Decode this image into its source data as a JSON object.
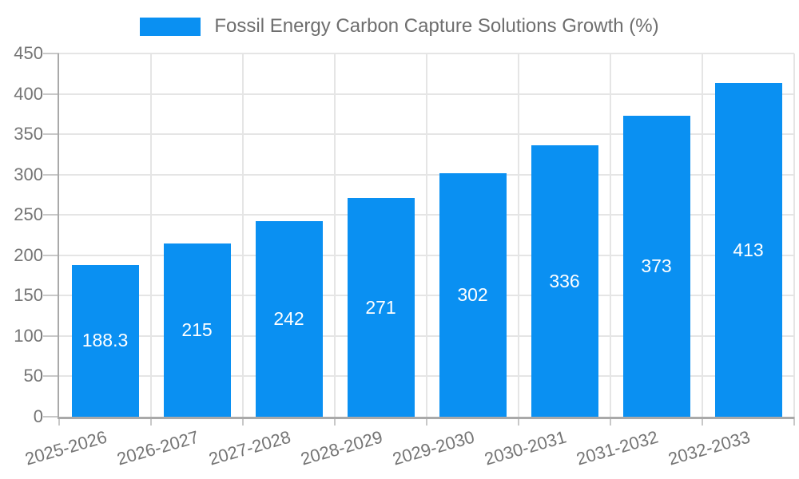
{
  "chart_data": {
    "type": "bar",
    "title": "Fossil Energy Carbon Capture Solutions Growth (%)",
    "categories": [
      "2025-2026",
      "2026-2027",
      "2027-2028",
      "2028-2029",
      "2029-2030",
      "2030-2031",
      "2031-2032",
      "2032-2033"
    ],
    "values": [
      188.3,
      215,
      242,
      271,
      302,
      336,
      373,
      413
    ],
    "value_labels": [
      "188.3",
      "215",
      "242",
      "271",
      "302",
      "336",
      "373",
      "413"
    ],
    "xlabel": "",
    "ylabel": "",
    "ylim": [
      0,
      450
    ],
    "yticks": [
      0,
      50,
      100,
      150,
      200,
      250,
      300,
      350,
      400,
      450
    ],
    "grid": "horizontal-and-vertical",
    "legend_position": "top-center",
    "x_tick_rotation_deg": 16,
    "colors": {
      "bar": "#0a90f2",
      "bar_label_text": "#ffffff",
      "legend_text": "#6e6e6e",
      "tick_text": "#757575",
      "axis_line": "#a9a9a9",
      "grid_line": "#e5e5e5",
      "tick_mark": "#c8c8c8",
      "background": "#ffffff"
    }
  }
}
